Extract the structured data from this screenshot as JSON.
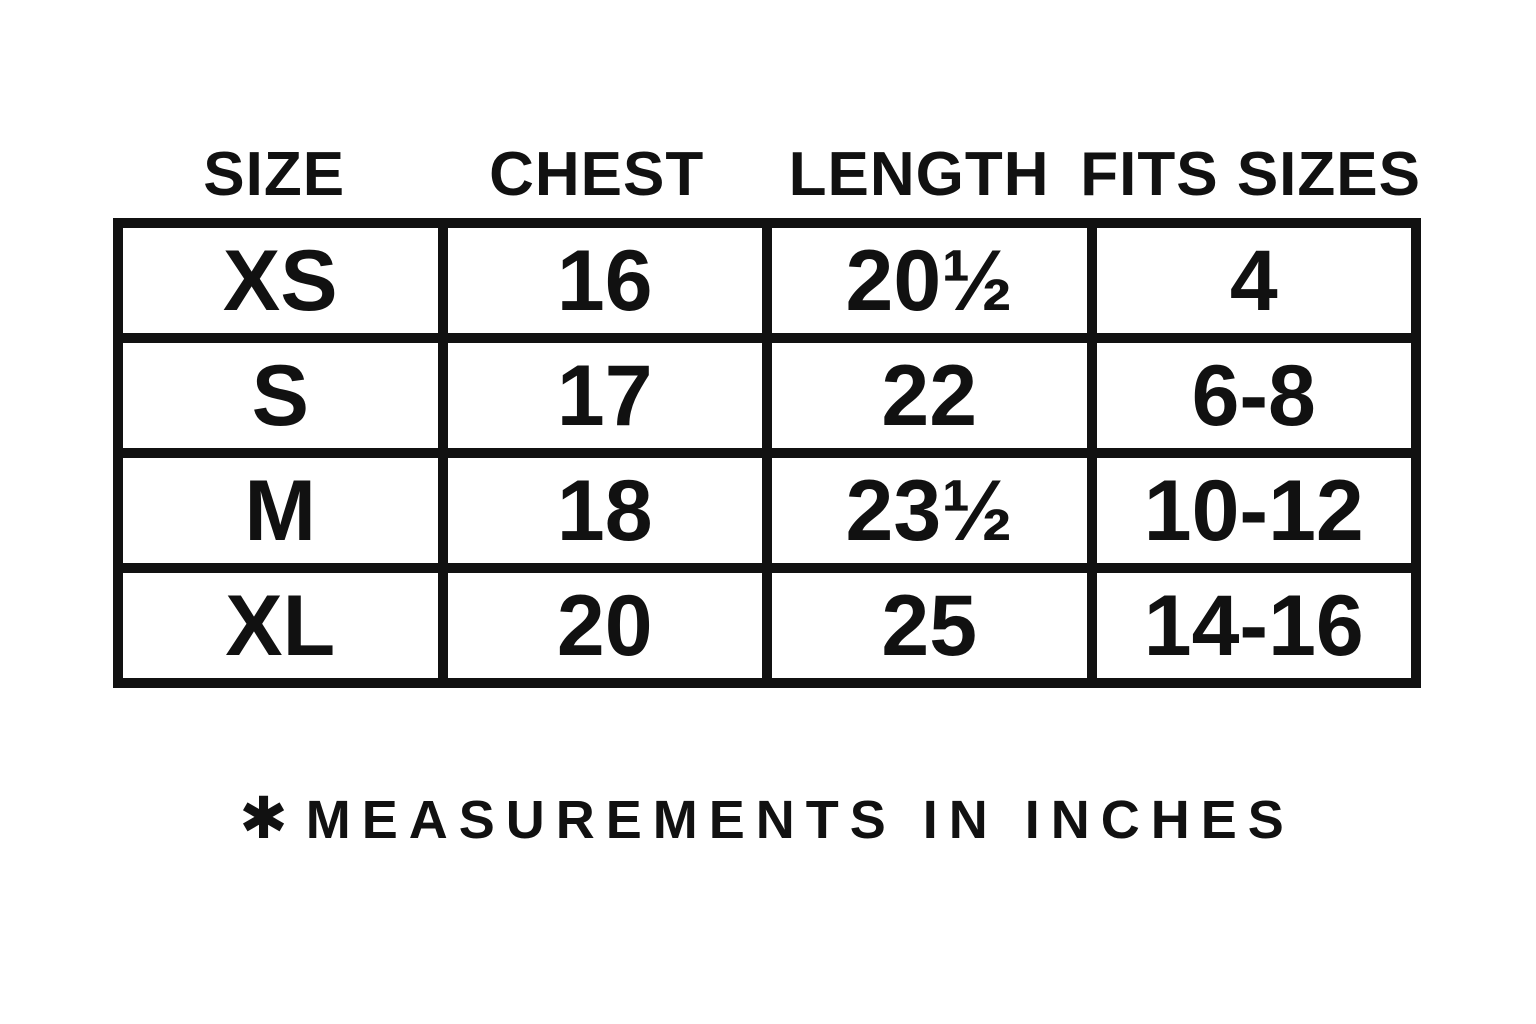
{
  "chart_data": {
    "type": "table",
    "title": "",
    "columns": [
      "SIZE",
      "CHEST",
      "LENGTH",
      "FITS SIZES"
    ],
    "rows": [
      [
        "XS",
        "16",
        "20½",
        "4"
      ],
      [
        "S",
        "17",
        "22",
        "6-8"
      ],
      [
        "M",
        "18",
        "23½",
        "10-12"
      ],
      [
        "XL",
        "20",
        "25",
        "14-16"
      ]
    ],
    "footnote": {
      "marker": "✱",
      "text": "MEASUREMENTS IN INCHES"
    }
  },
  "colors": {
    "text": "#111111",
    "border": "#111111",
    "background": "#ffffff"
  }
}
